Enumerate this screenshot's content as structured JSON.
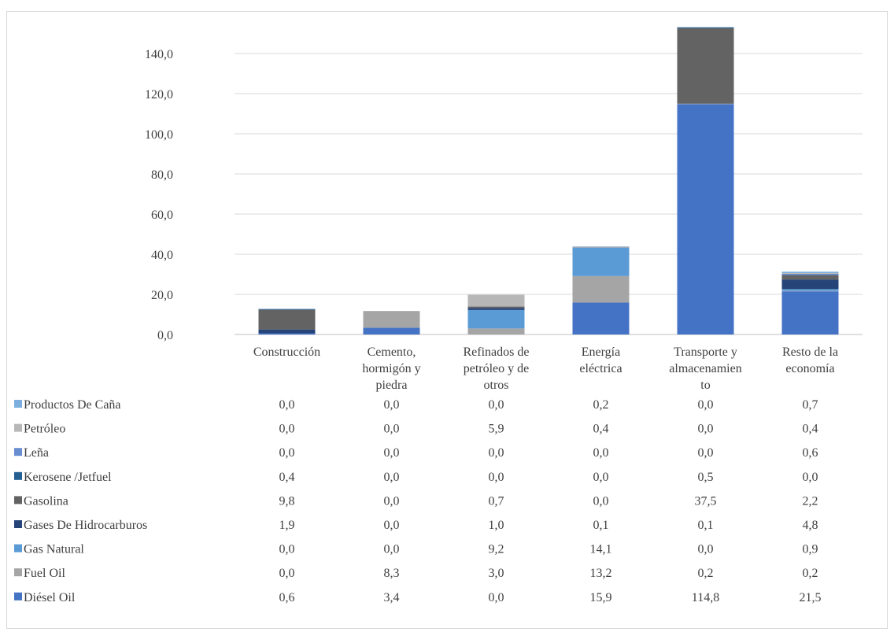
{
  "chart_data": {
    "type": "bar",
    "stacked": true,
    "categories": [
      [
        "Construcción"
      ],
      [
        "Cemento,",
        "hormigón y",
        "piedra"
      ],
      [
        "Refinados de",
        "petróleo y de",
        "otros"
      ],
      [
        "Energía",
        "eléctrica"
      ],
      [
        "Transporte y",
        "almacenamien",
        "to"
      ],
      [
        "Resto de la",
        "economía"
      ]
    ],
    "ylim": [
      0,
      150
    ],
    "yticks": [
      "0,0",
      "20,0",
      "40,0",
      "60,0",
      "80,0",
      "100,0",
      "120,0",
      "140,0"
    ],
    "ytick_values": [
      0,
      20,
      40,
      60,
      80,
      100,
      120,
      140
    ],
    "grid": true,
    "legend_placement": "data-table",
    "series": [
      {
        "name": "Diésel Oil",
        "color": "#4472c4",
        "values": [
          0.6,
          3.4,
          0.0,
          15.9,
          114.8,
          21.5
        ],
        "labels": [
          "0,6",
          "3,4",
          "0,0",
          "15,9",
          "114,8",
          "21,5"
        ]
      },
      {
        "name": "Fuel Oil",
        "color": "#a5a5a5",
        "values": [
          0.0,
          8.3,
          3.0,
          13.2,
          0.2,
          0.2
        ],
        "labels": [
          "0,0",
          "8,3",
          "3,0",
          "13,2",
          "0,2",
          "0,2"
        ]
      },
      {
        "name": "Gas Natural",
        "color": "#5b9bd5",
        "values": [
          0.0,
          0.0,
          9.2,
          14.1,
          0.0,
          0.9
        ],
        "labels": [
          "0,0",
          "0,0",
          "9,2",
          "14,1",
          "0,0",
          "0,9"
        ]
      },
      {
        "name": "Gases De Hidrocarburos",
        "color": "#264478",
        "values": [
          1.9,
          0.0,
          1.0,
          0.1,
          0.1,
          4.8
        ],
        "labels": [
          "1,9",
          "0,0",
          "1,0",
          "0,1",
          "0,1",
          "4,8"
        ]
      },
      {
        "name": "Gasolina",
        "color": "#636363",
        "values": [
          9.8,
          0.0,
          0.7,
          0.0,
          37.5,
          2.2
        ],
        "labels": [
          "9,8",
          "0,0",
          "0,7",
          "0,0",
          "37,5",
          "2,2"
        ]
      },
      {
        "name": "Kerosene /Jetfuel",
        "color": "#255e91",
        "values": [
          0.4,
          0.0,
          0.0,
          0.0,
          0.5,
          0.0
        ],
        "labels": [
          "0,4",
          "0,0",
          "0,0",
          "0,0",
          "0,5",
          "0,0"
        ]
      },
      {
        "name": "Leña",
        "color": "#698ed0",
        "values": [
          0.0,
          0.0,
          0.0,
          0.0,
          0.0,
          0.6
        ],
        "labels": [
          "0,0",
          "0,0",
          "0,0",
          "0,0",
          "0,0",
          "0,6"
        ]
      },
      {
        "name": "Petróleo",
        "color": "#b7b7b7",
        "values": [
          0.0,
          0.0,
          5.9,
          0.4,
          0.0,
          0.4
        ],
        "labels": [
          "0,0",
          "0,0",
          "5,9",
          "0,4",
          "0,0",
          "0,4"
        ]
      },
      {
        "name": "Productos De Caña",
        "color": "#7cafdd",
        "values": [
          0.0,
          0.0,
          0.0,
          0.2,
          0.0,
          0.7
        ],
        "labels": [
          "0,0",
          "0,0",
          "0,0",
          "0,2",
          "0,0",
          "0,7"
        ]
      }
    ]
  }
}
